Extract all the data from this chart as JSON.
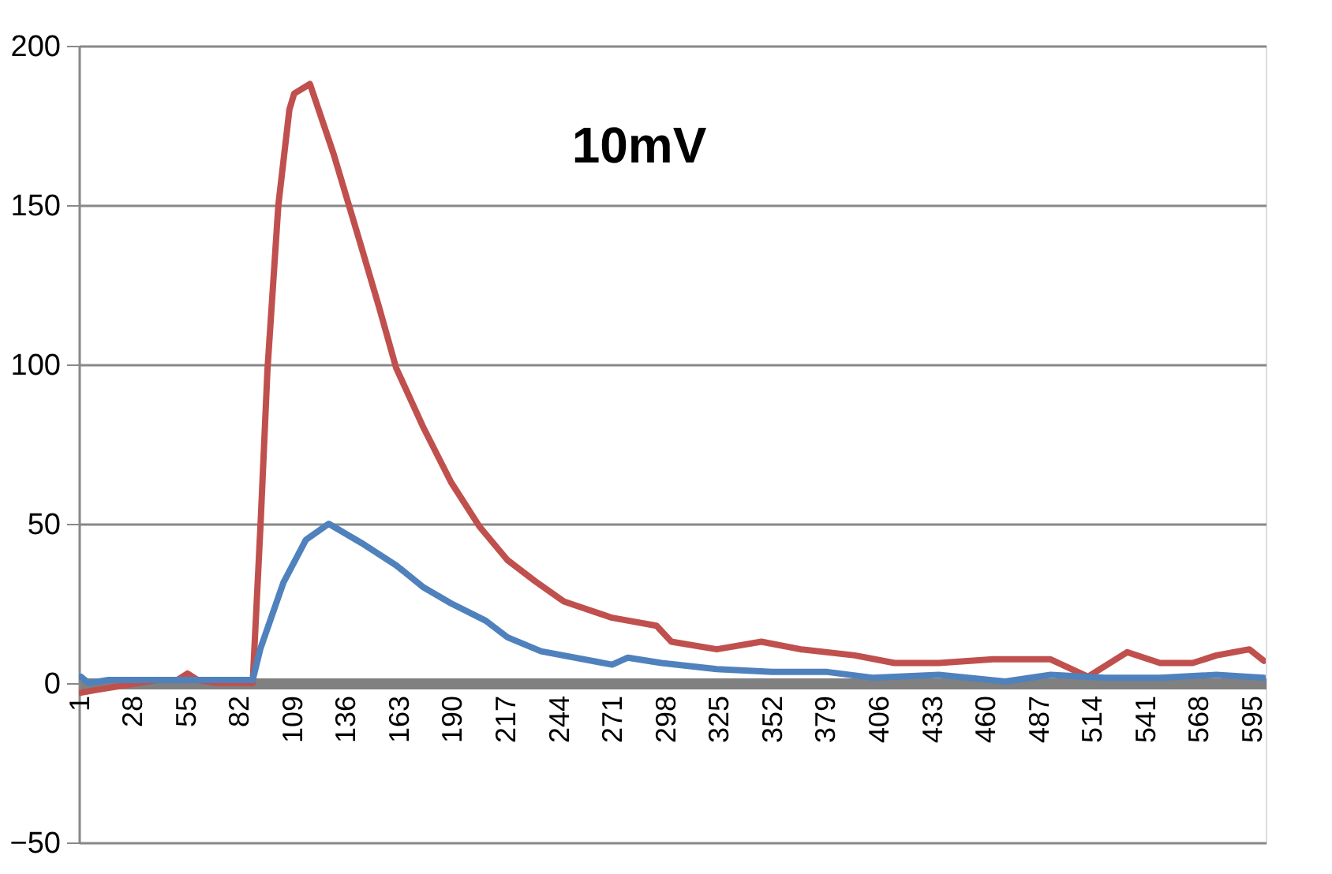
{
  "chart_data": {
    "type": "line",
    "annotations": [
      "10mV"
    ],
    "xlim": [
      0,
      601
    ],
    "xticks": [
      1,
      28,
      55,
      82,
      109,
      136,
      163,
      190,
      217,
      244,
      271,
      298,
      325,
      352,
      379,
      406,
      433,
      460,
      487,
      514,
      541,
      568,
      595
    ],
    "ylim": [
      -50,
      200
    ],
    "yticks": [
      -50,
      0,
      50,
      100,
      150,
      200
    ],
    "grid": "y",
    "marker": "none",
    "line_style": "solid",
    "series": [
      {
        "color": "#c0504d",
        "x": [
          1,
          10,
          20,
          30,
          40,
          50,
          55,
          60,
          70,
          80,
          88,
          92,
          95.5,
          101,
          106.6,
          109,
          117,
          129,
          142,
          152,
          160.6,
          174.6,
          188.5,
          203,
          217,
          231,
          245.6,
          270,
          292.5,
          300,
          323,
          345.6,
          365.5,
          393,
          413,
          435.5,
          463,
          491.8,
          511,
          530.8,
          547.5,
          564,
          576,
          592.7,
          600
        ],
        "values": [
          -3,
          -2,
          -1,
          0,
          1,
          1,
          3,
          1,
          0,
          0,
          0,
          50,
          98.5,
          150,
          180,
          185,
          188,
          166,
          139,
          118,
          99,
          80,
          63,
          49,
          38.6,
          32,
          25.6,
          20.5,
          18,
          13,
          10.6,
          13,
          10.6,
          8.7,
          6.3,
          6.3,
          7.5,
          7.5,
          2,
          9.7,
          6.3,
          6.3,
          8.7,
          10.6,
          7
        ]
      },
      {
        "color": "#4f81bd",
        "x": [
          1,
          5,
          15,
          30,
          45,
          60,
          75,
          88,
          92,
          103.6,
          115,
          126.5,
          143,
          160.6,
          174.6,
          188.5,
          206,
          217,
          234,
          270,
          278,
          295,
          323,
          351,
          379,
          401.8,
          435.5,
          469,
          492,
          519.8,
          547.5,
          576,
          600
        ],
        "values": [
          2,
          0,
          1,
          1,
          1,
          1,
          1,
          1,
          11,
          31.6,
          45,
          50,
          44,
          37,
          30,
          25,
          19.6,
          14.4,
          10,
          5.8,
          8,
          6.3,
          4.4,
          3.5,
          3.5,
          1.7,
          2.6,
          0.5,
          2.6,
          1.7,
          1.7,
          2.6,
          1.7
        ]
      }
    ]
  }
}
